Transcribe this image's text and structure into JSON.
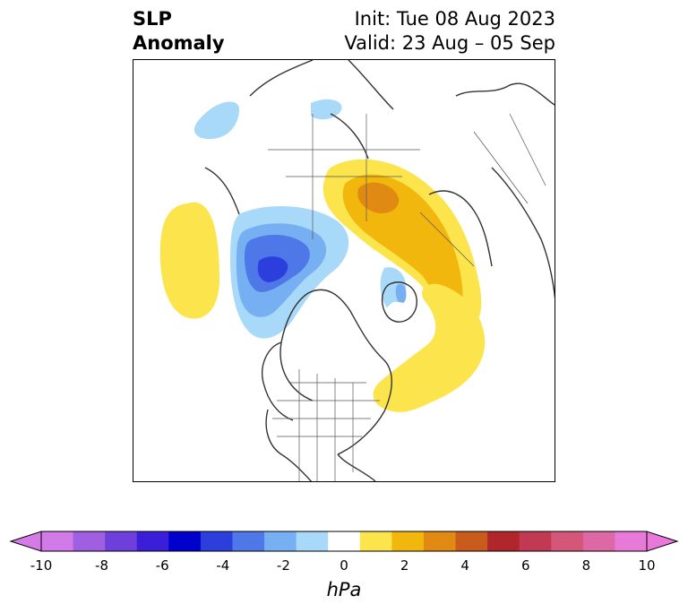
{
  "title": {
    "left": "SLP\nAnomaly",
    "right": "Init: Tue 08 Aug 2023\nValid: 23 Aug – 05 Sep"
  },
  "colorbar": {
    "units": "hPa",
    "ticks": [
      "-10",
      "-8",
      "-6",
      "-4",
      "-2",
      "0",
      "2",
      "4",
      "6",
      "8",
      "10"
    ],
    "colors": [
      "#d17ae8",
      "#a05ee0",
      "#6e3fda",
      "#3a1ed8",
      "#0000cd",
      "#2c3fdc",
      "#4e78e8",
      "#77b0f2",
      "#a9d9f8",
      "#ffffff",
      "#fce44d",
      "#f1b70d",
      "#e08a14",
      "#c95c1c",
      "#b1262a",
      "#c23a52",
      "#d45678",
      "#dc68a6",
      "#e77ad8"
    ],
    "extend_low_color": "#d67ae8",
    "extend_high_color": "#e879da"
  },
  "map": {
    "projection": "north polar stereographic",
    "region": "North America / North Atlantic / Arctic",
    "features": [
      "coastlines",
      "country borders",
      "state/province borders"
    ]
  }
}
